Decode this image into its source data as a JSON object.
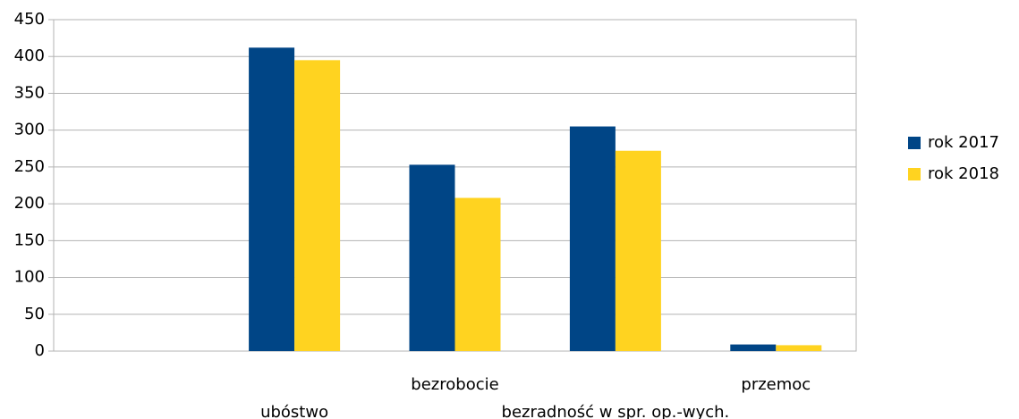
{
  "chart_data": {
    "type": "bar",
    "categories": [
      null,
      "ubóstwo",
      "bezrobocie",
      "bezradność w spr. op.-wych.",
      "przemoc"
    ],
    "series": [
      {
        "name": "rok 2017",
        "color": "#004586",
        "values": [
          null,
          412,
          253,
          305,
          9
        ]
      },
      {
        "name": "rok 2018",
        "color": "#ffd320",
        "values": [
          null,
          395,
          208,
          272,
          8
        ]
      }
    ],
    "ylim": [
      0,
      450
    ],
    "yticks": [
      0,
      50,
      100,
      150,
      200,
      250,
      300,
      350,
      400,
      450
    ],
    "grid": true,
    "legend": "right"
  }
}
